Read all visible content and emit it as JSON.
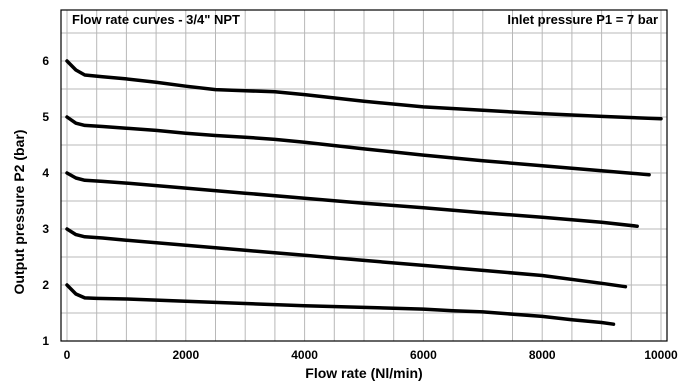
{
  "chart_data": {
    "type": "line",
    "title": "Flow rate curves - 3/4\" NPT",
    "subtitle": "Inlet pressure P1 = 7 bar",
    "xlabel": "Flow rate (Nl/min)",
    "ylabel": "Output pressure P2 (bar)",
    "xlim": [
      0,
      10000
    ],
    "ylim": [
      1,
      6.5
    ],
    "x_ticks": [
      0,
      2000,
      4000,
      6000,
      8000,
      10000
    ],
    "y_ticks": [
      1,
      2,
      3,
      4,
      5,
      6
    ],
    "grid": true,
    "series": [
      {
        "x": [
          0,
          150,
          300,
          600,
          1000,
          1500,
          2000,
          2500,
          3000,
          3500,
          4000,
          5000,
          6000,
          7000,
          8000,
          9000,
          10000
        ],
        "y": [
          6.0,
          5.84,
          5.75,
          5.72,
          5.68,
          5.62,
          5.55,
          5.49,
          5.47,
          5.45,
          5.4,
          5.28,
          5.18,
          5.12,
          5.06,
          5.01,
          4.97
        ]
      },
      {
        "x": [
          0,
          150,
          300,
          600,
          1000,
          1500,
          2000,
          2500,
          3000,
          3500,
          4000,
          5000,
          6000,
          7000,
          8000,
          9000,
          9800
        ],
        "y": [
          5.0,
          4.89,
          4.85,
          4.83,
          4.8,
          4.76,
          4.71,
          4.67,
          4.64,
          4.6,
          4.55,
          4.43,
          4.32,
          4.22,
          4.13,
          4.04,
          3.97
        ]
      },
      {
        "x": [
          0,
          150,
          300,
          600,
          1000,
          2000,
          3000,
          4000,
          5000,
          6000,
          7000,
          8000,
          9000,
          9600
        ],
        "y": [
          4.0,
          3.91,
          3.87,
          3.85,
          3.82,
          3.73,
          3.64,
          3.55,
          3.46,
          3.38,
          3.29,
          3.21,
          3.12,
          3.05
        ]
      },
      {
        "x": [
          0,
          150,
          300,
          600,
          1000,
          2000,
          3000,
          4000,
          5000,
          6000,
          7000,
          8000,
          9000,
          9400
        ],
        "y": [
          3.0,
          2.9,
          2.86,
          2.84,
          2.8,
          2.71,
          2.62,
          2.53,
          2.44,
          2.35,
          2.26,
          2.17,
          2.03,
          1.97
        ]
      },
      {
        "x": [
          0,
          150,
          300,
          500,
          1000,
          2000,
          3000,
          4000,
          5000,
          6000,
          6500,
          7000,
          8000,
          8500,
          9000,
          9200
        ],
        "y": [
          2.0,
          1.84,
          1.77,
          1.76,
          1.75,
          1.71,
          1.67,
          1.63,
          1.6,
          1.57,
          1.54,
          1.52,
          1.44,
          1.38,
          1.33,
          1.3
        ]
      }
    ]
  }
}
